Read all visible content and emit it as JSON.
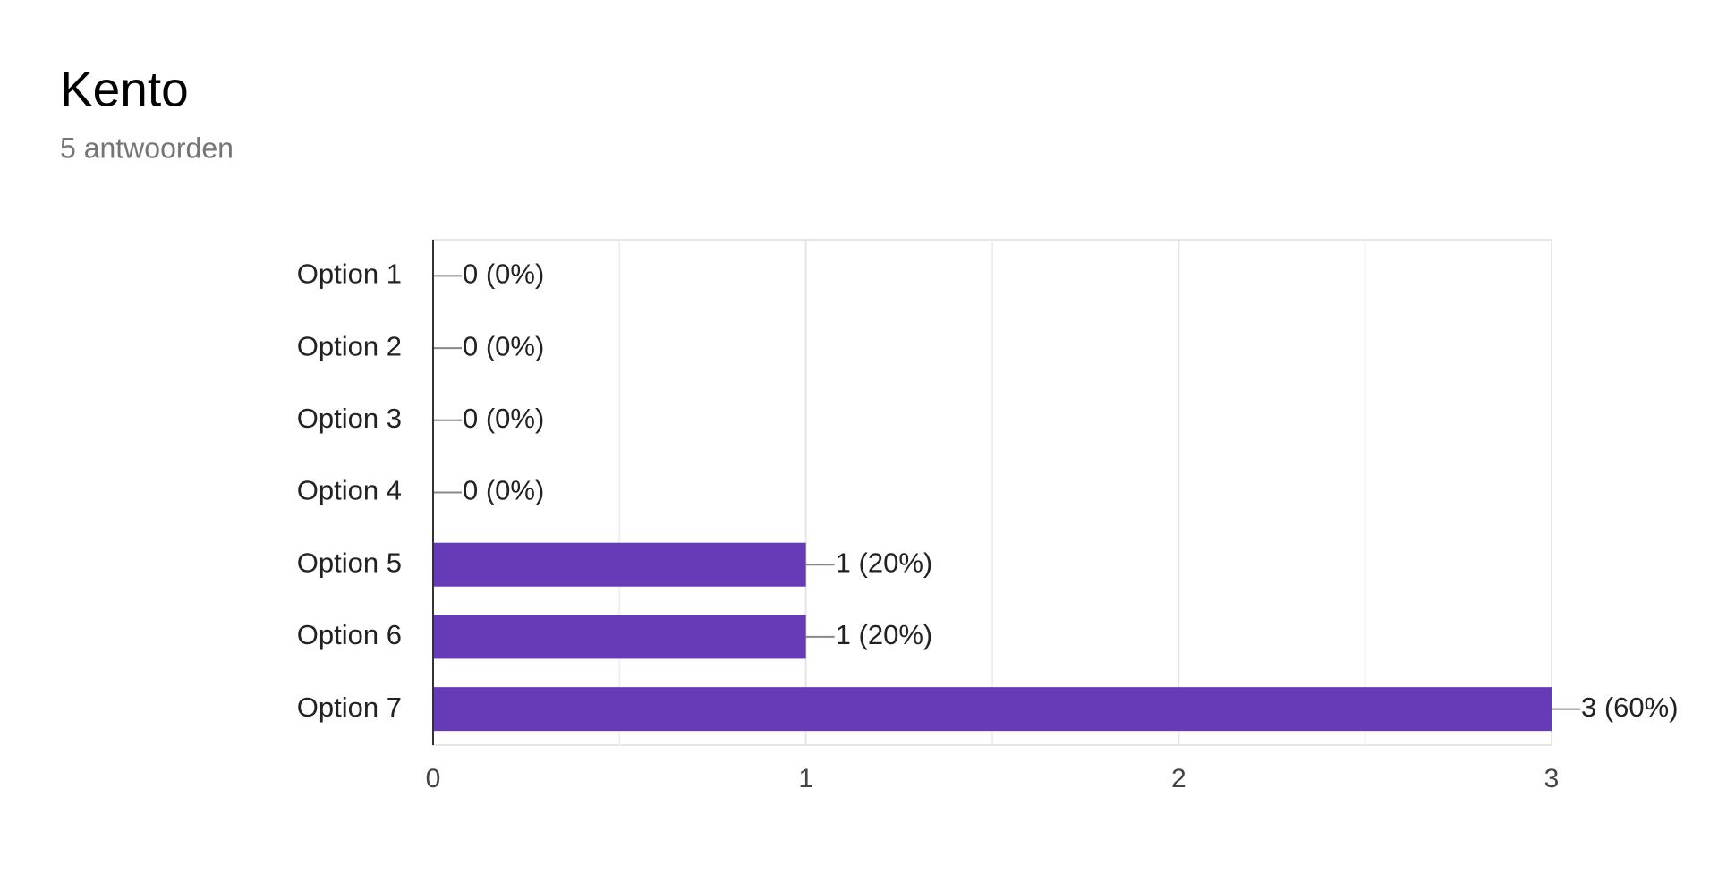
{
  "chart_data": {
    "type": "bar",
    "orientation": "horizontal",
    "title": "Kento",
    "subtitle": "5 antwoorden",
    "categories": [
      "Option 1",
      "Option 2",
      "Option 3",
      "Option 4",
      "Option 5",
      "Option 6",
      "Option 7"
    ],
    "values": [
      0,
      0,
      0,
      0,
      1,
      1,
      3
    ],
    "value_labels": [
      "0 (0%)",
      "0 (0%)",
      "0 (0%)",
      "0 (0%)",
      "1 (20%)",
      "1 (20%)",
      "3 (60%)"
    ],
    "color": "#673ab7",
    "xlim": [
      0,
      3
    ],
    "xticks": [
      0,
      1,
      2,
      3
    ],
    "minor_gridlines": [
      0.5,
      1.5,
      2.5
    ],
    "grid": true
  }
}
